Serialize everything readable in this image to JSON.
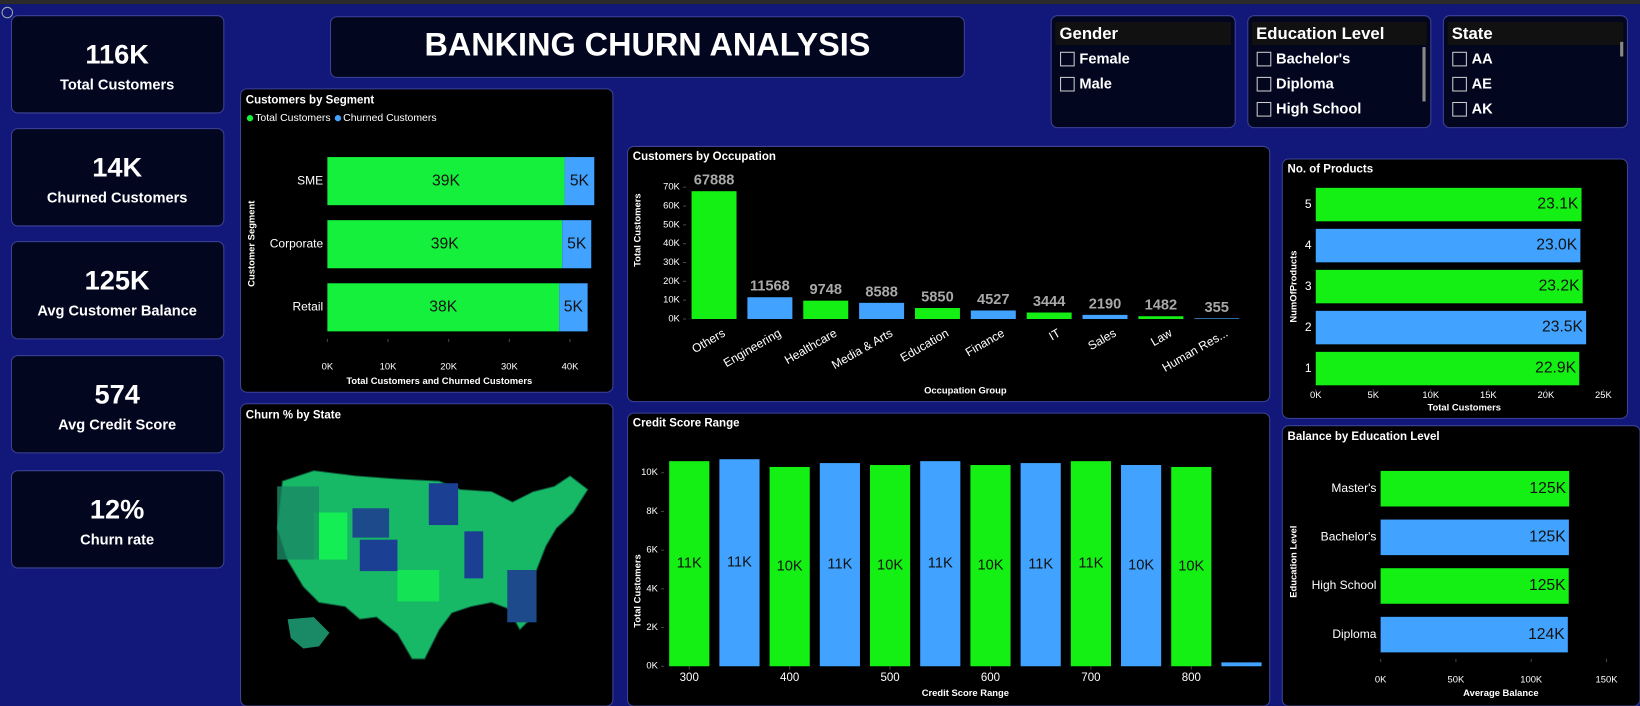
{
  "title": "BANKING CHURN ANALYSIS",
  "kpis": [
    {
      "value": "116K",
      "label": "Total Customers"
    },
    {
      "value": "14K",
      "label": "Churned Customers"
    },
    {
      "value": "125K",
      "label": "Avg Customer Balance"
    },
    {
      "value": "574",
      "label": "Avg Credit Score"
    },
    {
      "value": "12%",
      "label": "Churn rate"
    }
  ],
  "slicers": [
    {
      "title": "Gender",
      "items": [
        "Female",
        "Male"
      ]
    },
    {
      "title": "Education Level",
      "items": [
        "Bachelor's",
        "Diploma",
        "High School"
      ]
    },
    {
      "title": "State",
      "items": [
        "AA",
        "AE",
        "AK"
      ]
    }
  ],
  "chart_data": [
    {
      "type": "bar",
      "orientation": "horizontal",
      "stacked": true,
      "title": "Customers by Segment",
      "categories": [
        "SME",
        "Corporate",
        "Retail"
      ],
      "series": [
        {
          "name": "Total Customers",
          "color": "#14f03c",
          "values": [
            39100,
            38700,
            38200
          ],
          "value_labels": [
            "39K",
            "39K",
            "38K"
          ]
        },
        {
          "name": "Churned Customers",
          "color": "#41a3ff",
          "values": [
            4900,
            4800,
            4700
          ],
          "value_labels": [
            "5K",
            "5K",
            "5K"
          ]
        }
      ],
      "xlim": [
        0,
        45000
      ],
      "xticks": [
        {
          "value": 0,
          "label": "0K"
        },
        {
          "value": 10000,
          "label": "10K"
        },
        {
          "value": 20000,
          "label": "20K"
        },
        {
          "value": 30000,
          "label": "30K"
        },
        {
          "value": 40000,
          "label": "40K"
        }
      ],
      "xlabel": "Total Customers and Churned Customers",
      "ylabel": "Customer Segment",
      "legend": "top-left"
    },
    {
      "type": "bar",
      "title": "Customers by Occupation",
      "categories": [
        "Others",
        "Engineering",
        "Healthcare",
        "Media & Arts",
        "Education",
        "Finance",
        "IT",
        "Sales",
        "Law",
        "Human Res..."
      ],
      "values": [
        67888,
        11568,
        9748,
        8588,
        5850,
        4527,
        3444,
        2190,
        1482,
        355
      ],
      "colors": [
        "#14f014",
        "#41a3ff",
        "#14f014",
        "#41a3ff",
        "#14f014",
        "#41a3ff",
        "#14f014",
        "#41a3ff",
        "#14f014",
        "#41a3ff"
      ],
      "ylim": [
        0,
        75000
      ],
      "yticks": [
        {
          "value": 0,
          "label": "0K"
        },
        {
          "value": 10000,
          "label": "10K"
        },
        {
          "value": 20000,
          "label": "20K"
        },
        {
          "value": 30000,
          "label": "30K"
        },
        {
          "value": 40000,
          "label": "40K"
        },
        {
          "value": 50000,
          "label": "50K"
        },
        {
          "value": 60000,
          "label": "60K"
        },
        {
          "value": 70000,
          "label": "70K"
        }
      ],
      "xlabel": "Occupation Group",
      "ylabel": "Total Customers"
    },
    {
      "type": "bar",
      "orientation": "horizontal",
      "title": "No. of Products",
      "categories": [
        "5",
        "4",
        "3",
        "2",
        "1"
      ],
      "values": [
        23100,
        23000,
        23200,
        23500,
        22900
      ],
      "value_labels": [
        "23.1K",
        "23.0K",
        "23.2K",
        "23.5K",
        "22.9K"
      ],
      "colors": [
        "#14f014",
        "#41a3ff",
        "#14f014",
        "#41a3ff",
        "#14f014"
      ],
      "xlim": [
        0,
        25000
      ],
      "xticks": [
        {
          "value": 0,
          "label": "0K"
        },
        {
          "value": 5000,
          "label": "5K"
        },
        {
          "value": 10000,
          "label": "10K"
        },
        {
          "value": 15000,
          "label": "15K"
        },
        {
          "value": 20000,
          "label": "20K"
        },
        {
          "value": 25000,
          "label": "25K"
        }
      ],
      "xlabel": "Total Customers",
      "ylabel": "NumOfProducts"
    },
    {
      "type": "bar",
      "title": "Credit Score Range",
      "x": [
        300,
        350,
        400,
        450,
        500,
        550,
        600,
        650,
        700,
        750,
        800,
        850
      ],
      "values": [
        10600,
        10700,
        10300,
        10500,
        10400,
        10600,
        10400,
        10500,
        10600,
        10400,
        10300,
        200
      ],
      "value_labels": [
        "11K",
        "11K",
        "10K",
        "11K",
        "10K",
        "11K",
        "10K",
        "11K",
        "11K",
        "10K",
        "10K",
        null
      ],
      "colors": [
        "#14f014",
        "#41a3ff",
        "#14f014",
        "#41a3ff",
        "#14f014",
        "#41a3ff",
        "#14f014",
        "#41a3ff",
        "#14f014",
        "#41a3ff",
        "#14f014",
        "#41a3ff"
      ],
      "xlim": [
        275,
        875
      ],
      "xticks": [
        300,
        400,
        500,
        600,
        700,
        800
      ],
      "ylim": [
        0,
        11000
      ],
      "yticks": [
        {
          "value": 0,
          "label": "0K"
        },
        {
          "value": 2000,
          "label": "2K"
        },
        {
          "value": 4000,
          "label": "4K"
        },
        {
          "value": 6000,
          "label": "6K"
        },
        {
          "value": 8000,
          "label": "8K"
        },
        {
          "value": 10000,
          "label": "10K"
        }
      ],
      "xlabel": "Credit Score Range",
      "ylabel": "Total Customers"
    },
    {
      "type": "bar",
      "orientation": "horizontal",
      "title": "Balance by Education Level",
      "categories": [
        "Master's",
        "Bachelor's",
        "High School",
        "Diploma"
      ],
      "values": [
        125200,
        125000,
        124900,
        124300
      ],
      "value_labels": [
        "125K",
        "125K",
        "125K",
        "124K"
      ],
      "colors": [
        "#14f014",
        "#41a3ff",
        "#14f014",
        "#41a3ff"
      ],
      "xlim": [
        0,
        150000
      ],
      "xticks": [
        {
          "value": 0,
          "label": "0K"
        },
        {
          "value": 50000,
          "label": "50K"
        },
        {
          "value": 100000,
          "label": "100K"
        },
        {
          "value": 150000,
          "label": "150K"
        }
      ],
      "xlabel": "Average Balance",
      "ylabel": "Education Level"
    },
    {
      "type": "choropleth",
      "title": "Churn % by State"
    }
  ]
}
